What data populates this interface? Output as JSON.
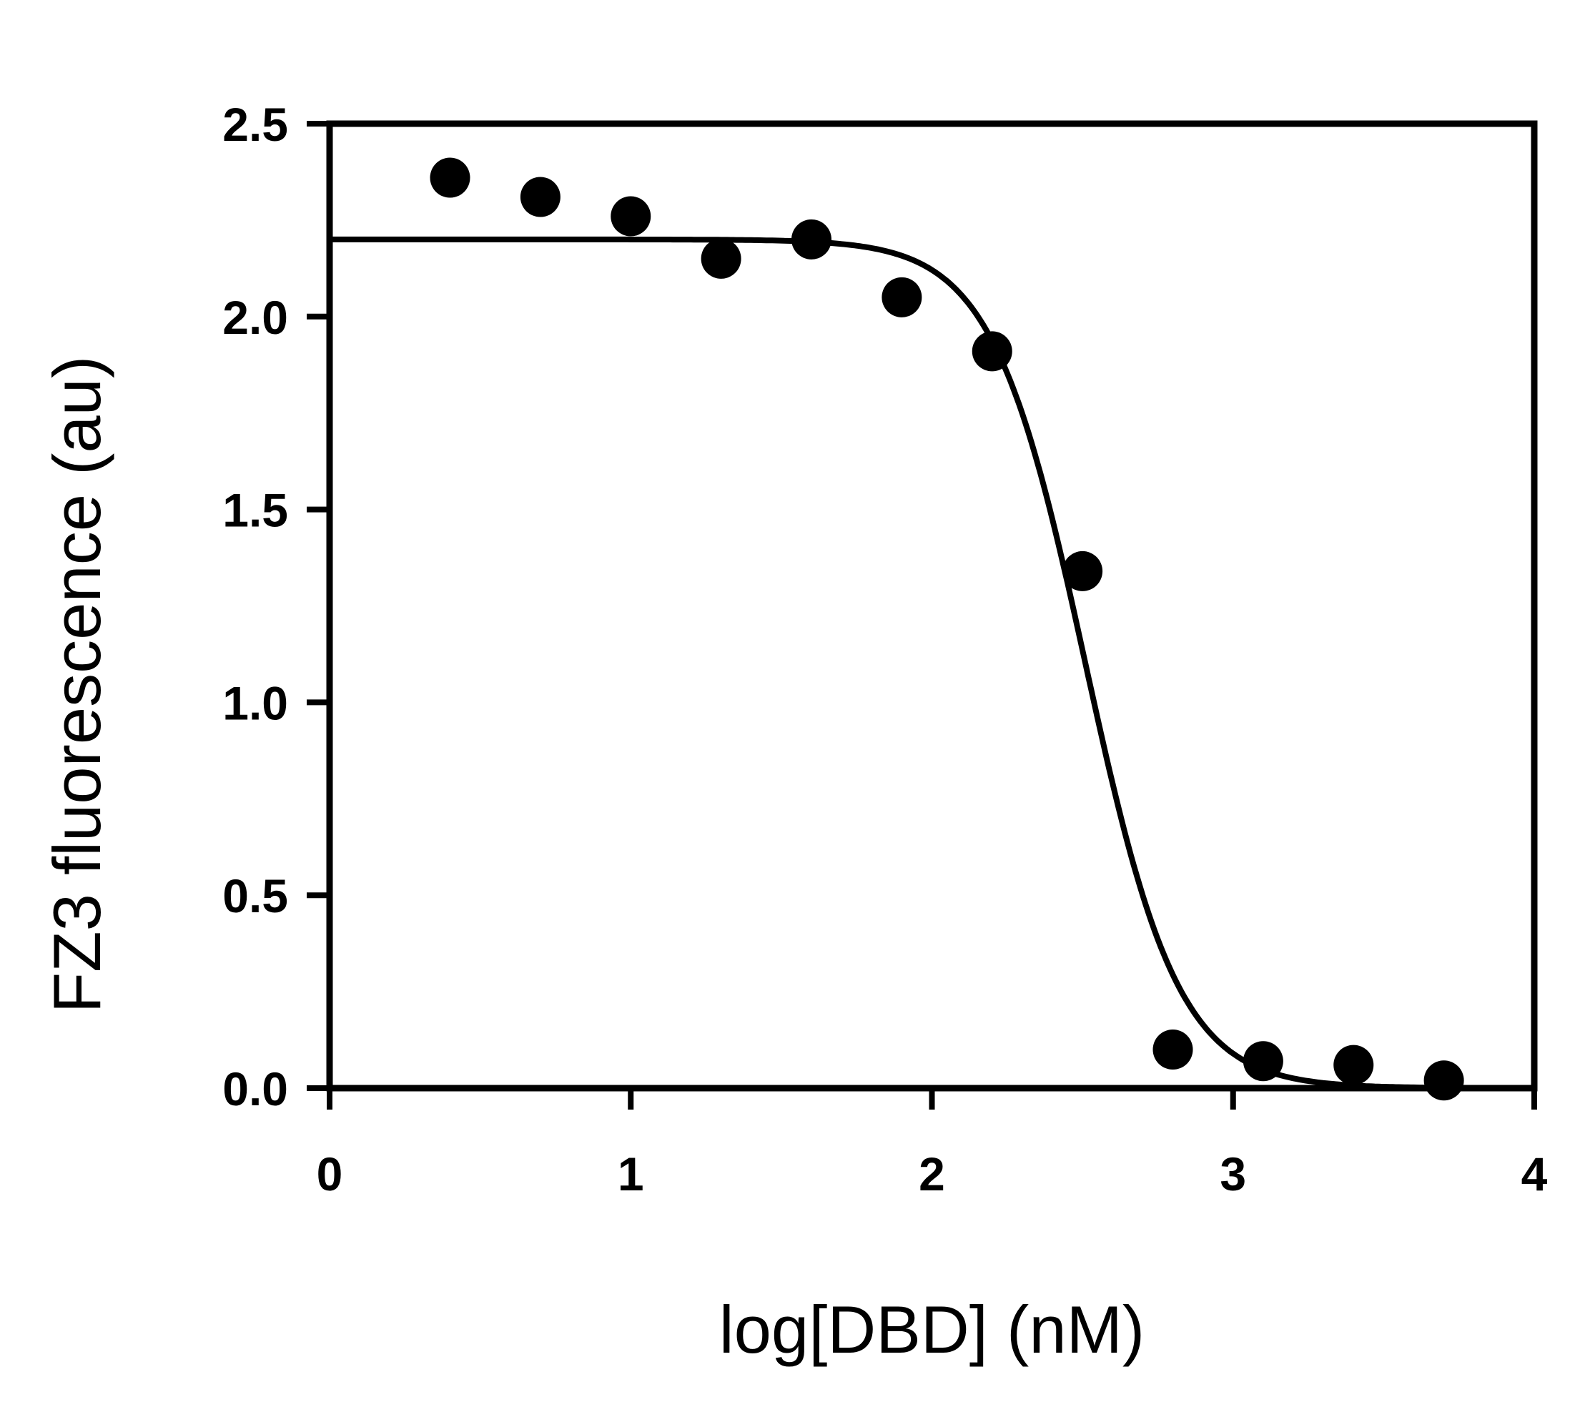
{
  "chart_data": {
    "type": "scatter",
    "title": "",
    "xlabel": "log[DBD] (nM)",
    "ylabel": "FZ3 fluorescence (au)",
    "xlim": [
      0,
      4
    ],
    "ylim": [
      0,
      2.5
    ],
    "x_ticks": [
      "0",
      "1",
      "2",
      "3",
      "4"
    ],
    "y_ticks": [
      "0.0",
      "0.5",
      "1.0",
      "1.5",
      "2.0",
      "2.5"
    ],
    "grid": false,
    "legend": "none",
    "series": [
      {
        "marker": "filled-circle",
        "color": "#000000",
        "points": [
          {
            "x": 0.4,
            "y": 2.36
          },
          {
            "x": 0.7,
            "y": 2.31
          },
          {
            "x": 1.0,
            "y": 2.26
          },
          {
            "x": 1.3,
            "y": 2.15
          },
          {
            "x": 1.6,
            "y": 2.2
          },
          {
            "x": 1.9,
            "y": 2.05
          },
          {
            "x": 2.2,
            "y": 1.91
          },
          {
            "x": 2.5,
            "y": 1.34
          },
          {
            "x": 2.8,
            "y": 0.1
          },
          {
            "x": 3.1,
            "y": 0.07
          },
          {
            "x": 3.4,
            "y": 0.06
          },
          {
            "x": 3.7,
            "y": 0.02
          }
        ]
      }
    ],
    "fit_curve": {
      "style": "solid-line",
      "color": "#000000",
      "top": 2.2,
      "bottom": 0.0,
      "log_ic50": 2.51,
      "hill_slope": 2.8
    }
  }
}
